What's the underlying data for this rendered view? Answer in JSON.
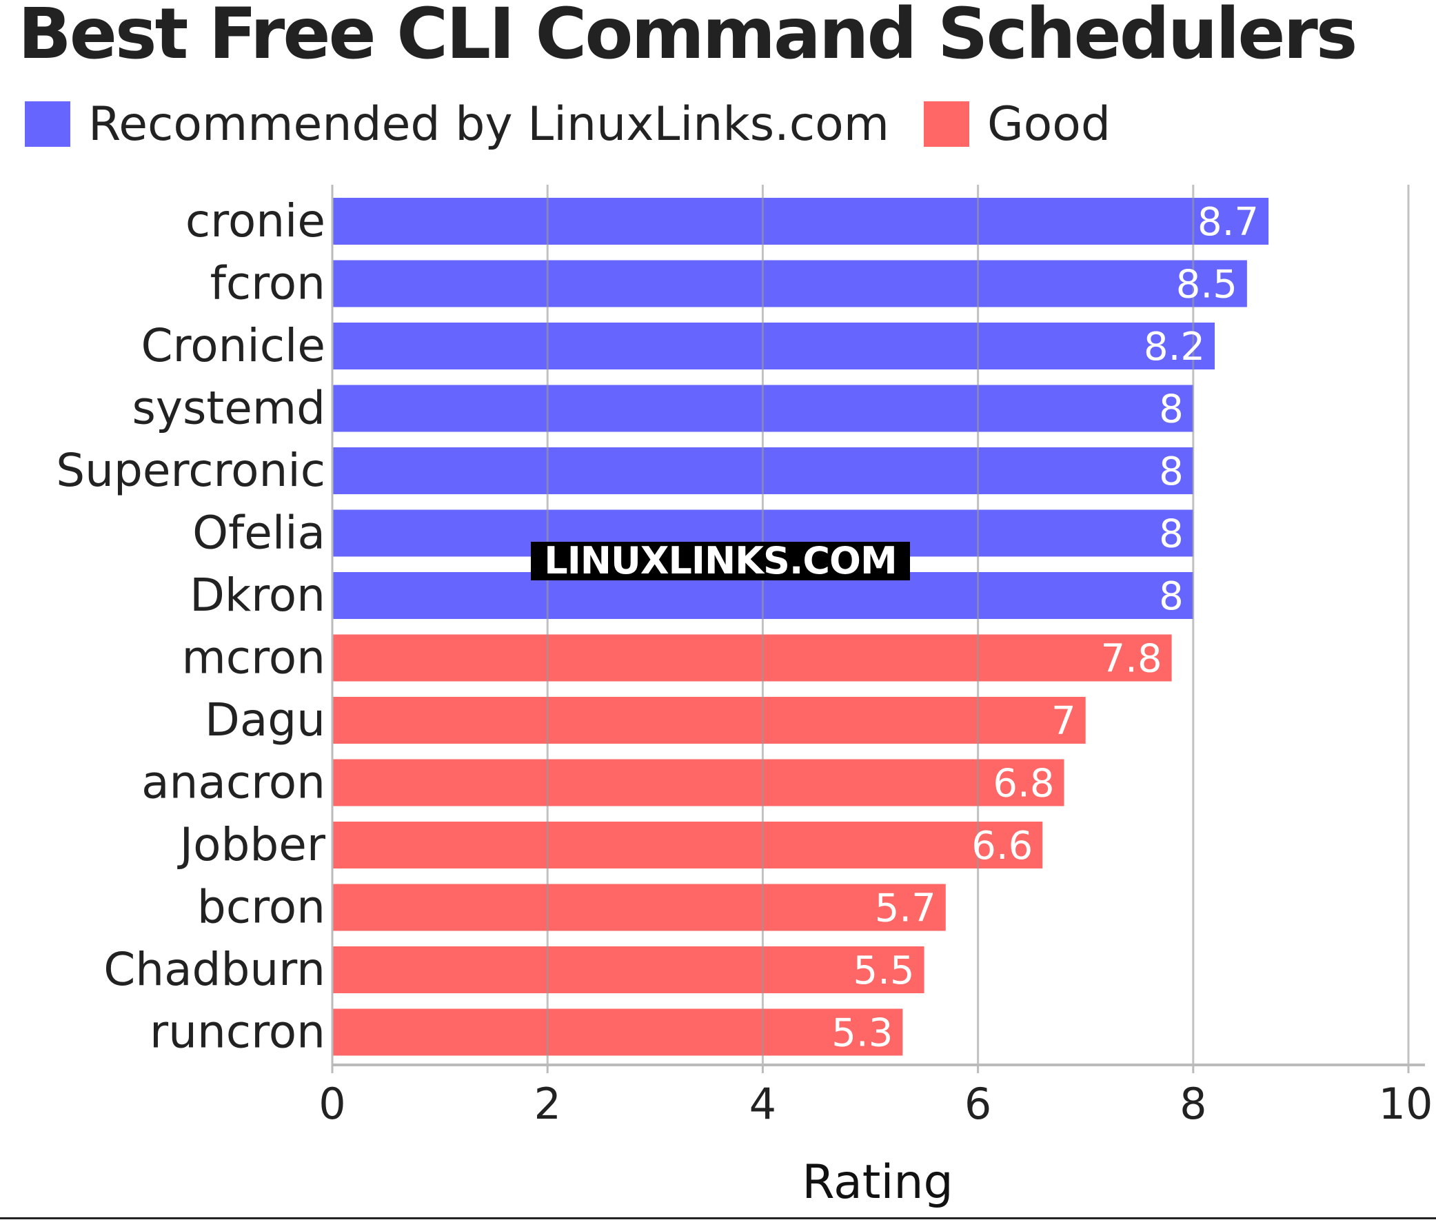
{
  "chart_data": {
    "type": "bar",
    "orientation": "horizontal",
    "title": "Best Free CLI Command Schedulers",
    "xlabel": "Rating",
    "ylabel": "",
    "xlim": [
      0,
      10
    ],
    "xticks": [
      0,
      2,
      4,
      6,
      8,
      10
    ],
    "grid": true,
    "legend_position": "top-left",
    "legend": [
      {
        "name": "Recommended by LinuxLinks.com",
        "color": "#6666ff"
      },
      {
        "name": "Good",
        "color": "#ff6666"
      }
    ],
    "categories": [
      "cronie",
      "fcron",
      "Cronicle",
      "systemd",
      "Supercronic",
      "Ofelia",
      "Dkron",
      "mcron",
      "Dagu",
      "anacron",
      "Jobber",
      "bcron",
      "Chadburn",
      "runcron"
    ],
    "values": [
      8.7,
      8.5,
      8.2,
      8,
      8,
      8,
      8,
      7.8,
      7,
      6.8,
      6.6,
      5.7,
      5.5,
      5.3
    ],
    "groups": [
      0,
      0,
      0,
      0,
      0,
      0,
      0,
      1,
      1,
      1,
      1,
      1,
      1,
      1
    ],
    "data_labels": [
      "8.7",
      "8.5",
      "8.2",
      "8",
      "8",
      "8",
      "8",
      "7.8",
      "7",
      "6.8",
      "6.6",
      "5.7",
      "5.5",
      "5.3"
    ]
  },
  "watermark": {
    "text": "LINUXLINKS.COM"
  }
}
